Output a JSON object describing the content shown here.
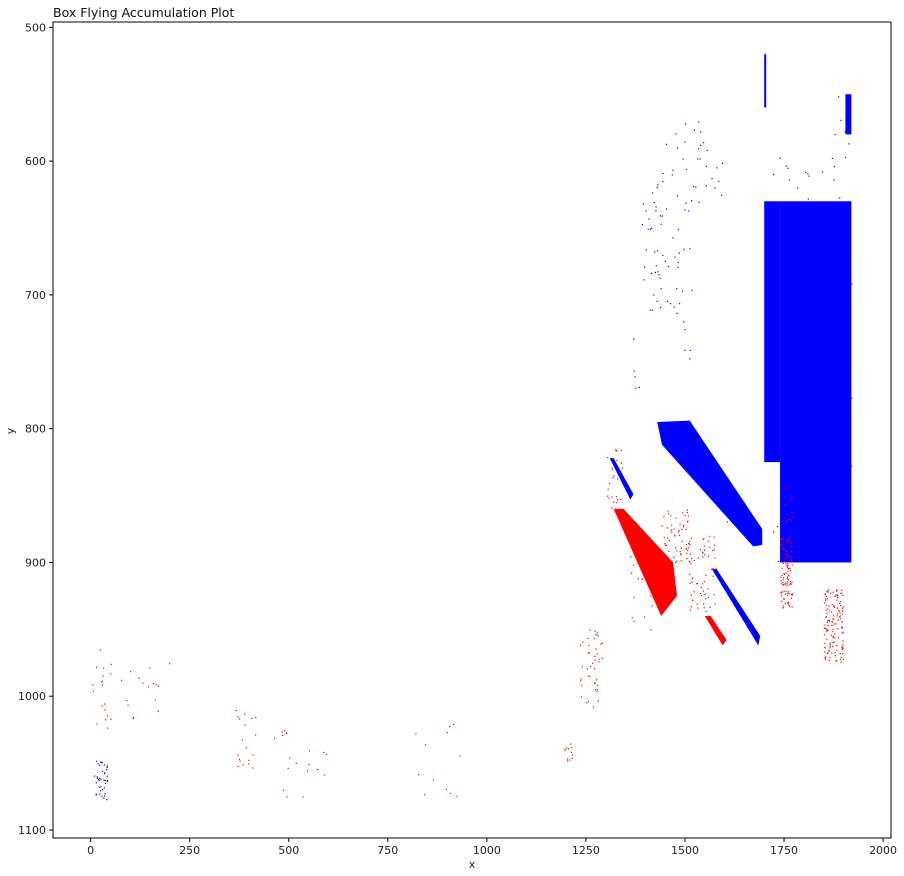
{
  "chart_data": {
    "type": "scatter",
    "title": "Box Flying Accumulation Plot",
    "xlabel": "x",
    "ylabel": "y",
    "xlim": [
      -95,
      2020
    ],
    "ylim": [
      1106,
      496
    ],
    "y_inverted": true,
    "grid": false,
    "legend": "none",
    "x_ticks": [
      0,
      250,
      500,
      750,
      1000,
      1250,
      1500,
      1750,
      2000
    ],
    "y_ticks": [
      500,
      600,
      700,
      800,
      900,
      1000,
      1100
    ],
    "series": [
      {
        "color": "#0000ff",
        "regions": [
          {
            "x": [
              1385,
              1440
            ],
            "y": [
              600,
              700
            ],
            "density": 0.00035
          },
          {
            "x": [
              1440,
              1580
            ],
            "y": [
              570,
              640
            ],
            "density": 0.00035
          },
          {
            "x": [
              1400,
              1520
            ],
            "y": [
              640,
              720
            ],
            "density": 0.00035
          },
          {
            "x": [
              1360,
              1400
            ],
            "y": [
              720,
              770
            ],
            "density": 0.00025
          },
          {
            "x": [
              1490,
              1520
            ],
            "y": [
              720,
              760
            ],
            "density": 0.00035
          },
          {
            "x": [
              1570,
              1600
            ],
            "y": [
              600,
              640
            ],
            "density": 0.0002
          },
          {
            "x": [
              1700,
              1740
            ],
            "y": [
              590,
              820
            ],
            "density": 0.00025
          },
          {
            "x": [
              1740,
              1830
            ],
            "y": [
              600,
              640
            ],
            "density": 0.0003
          },
          {
            "x": [
              1840,
              1870
            ],
            "y": [
              595,
              900
            ],
            "density": 0.00025
          },
          {
            "x": [
              1870,
              1920
            ],
            "y": [
              550,
              900
            ],
            "density": 0.00022
          },
          {
            "x": [
              1590,
              1620
            ],
            "y": [
              860,
              870
            ],
            "density": 0.00015
          },
          {
            "x": [
              1720,
              1760
            ],
            "y": [
              870,
              900
            ],
            "density": 0.0004
          },
          {
            "x": [
              8,
              42
            ],
            "y": [
              1048,
              1078
            ],
            "density": 0.004
          }
        ],
        "solid_regions": [
          {
            "x": [
              1740,
              1920
            ],
            "y": [
              630,
              900
            ]
          },
          {
            "x": [
              1700,
              1740
            ],
            "y": [
              630,
              825
            ]
          },
          {
            "x": [
              1700,
              1705
            ],
            "y": [
              520,
              560
            ]
          },
          {
            "x": [
              1905,
              1920
            ],
            "y": [
              550,
              580
            ]
          }
        ],
        "polygons": [
          [
            [
              1430,
              795
            ],
            [
              1512,
              794
            ],
            [
              1695,
              875
            ],
            [
              1695,
              887
            ],
            [
              1672,
              888
            ],
            [
              1442,
              812
            ]
          ],
          [
            [
              1310,
              822
            ],
            [
              1320,
              822
            ],
            [
              1370,
              849
            ],
            [
              1362,
              853
            ]
          ],
          [
            [
              1568,
              905
            ],
            [
              1580,
              905
            ],
            [
              1690,
              955
            ],
            [
              1685,
              962
            ]
          ]
        ]
      },
      {
        "color": "#ff0000",
        "regions": [
          {
            "x": [
              1300,
              1345
            ],
            "y": [
              815,
              860
            ],
            "density": 0.0012
          },
          {
            "x": [
              1350,
              1420
            ],
            "y": [
              885,
              950
            ],
            "density": 0.0004
          },
          {
            "x": [
              1440,
              1510
            ],
            "y": [
              860,
              900
            ],
            "density": 0.002
          },
          {
            "x": [
              1510,
              1580
            ],
            "y": [
              880,
              940
            ],
            "density": 0.0015
          },
          {
            "x": [
              1740,
              1770
            ],
            "y": [
              880,
              935
            ],
            "density": 0.006
          },
          {
            "x": [
              1850,
              1900
            ],
            "y": [
              920,
              975
            ],
            "density": 0.005
          },
          {
            "x": [
              1750,
              1770
            ],
            "y": [
              840,
              870
            ],
            "density": 0.0025
          },
          {
            "x": [
              1230,
              1290
            ],
            "y": [
              950,
              1010
            ],
            "density": 0.0012
          },
          {
            "x": [
              1195,
              1215
            ],
            "y": [
              1035,
              1050
            ],
            "density": 0.004
          },
          {
            "x": [
              0,
              50
            ],
            "y": [
              960,
              1030
            ],
            "density": 0.0005
          },
          {
            "x": [
              50,
              200
            ],
            "y": [
              975,
              1020
            ],
            "density": 0.00025
          },
          {
            "x": [
              350,
              500
            ],
            "y": [
              1010,
              1060
            ],
            "density": 0.00035
          },
          {
            "x": [
              480,
              600
            ],
            "y": [
              1040,
              1080
            ],
            "density": 0.00025
          },
          {
            "x": [
              800,
              950
            ],
            "y": [
              1020,
              1075
            ],
            "density": 0.00015
          }
        ],
        "polygons": [
          [
            [
              1320,
              860
            ],
            [
              1345,
              860
            ],
            [
              1470,
              900
            ],
            [
              1480,
              925
            ],
            [
              1440,
              940
            ]
          ],
          [
            [
              1550,
              940
            ],
            [
              1565,
              940
            ],
            [
              1605,
              958
            ],
            [
              1595,
              962
            ]
          ]
        ]
      }
    ]
  }
}
